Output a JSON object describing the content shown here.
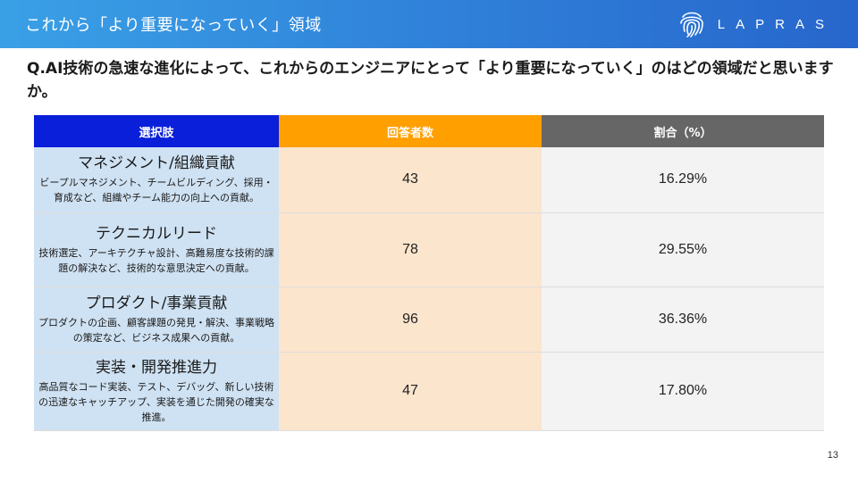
{
  "header": {
    "title": "これから「より重要になっていく」領域",
    "brand": "LAPRAS"
  },
  "question": "Q.AI技術の急速な進化によって、これからのエンジニアにとって「より重要になっていく」のはどの領域だと思いますか。",
  "table": {
    "headers": {
      "choice": "選択肢",
      "count": "回答者数",
      "ratio": "割合（%）"
    },
    "rows": [
      {
        "title": "マネジメント/組織貢献",
        "description": "ビープルマネジメント、チームビルディング、採用・育成など、組織やチーム能力の向上への貢献。",
        "count": "43",
        "ratio": "16.29%"
      },
      {
        "title": "テクニカルリード",
        "description": "技術選定、アーキテクチャ設計、高難易度な技術的課題の解決など、技術的な意思決定への貢献。",
        "count": "78",
        "ratio": "29.55%"
      },
      {
        "title": "プロダクト/事業貢献",
        "description": "プロダクトの企画、顧客課題の発見・解決、事業戦略の策定など、ビジネス成果への貢献。",
        "count": "96",
        "ratio": "36.36%"
      },
      {
        "title": "実装・開発推進力",
        "description": "高品質なコード実装、テスト、デバッグ、新しい技術の迅速なキャッチアップ、実装を通じた開発の確実な推進。",
        "count": "47",
        "ratio": "17.80%"
      }
    ]
  },
  "page_number": "13",
  "icons": {
    "brand_mark": "fingerprint-icon"
  }
}
